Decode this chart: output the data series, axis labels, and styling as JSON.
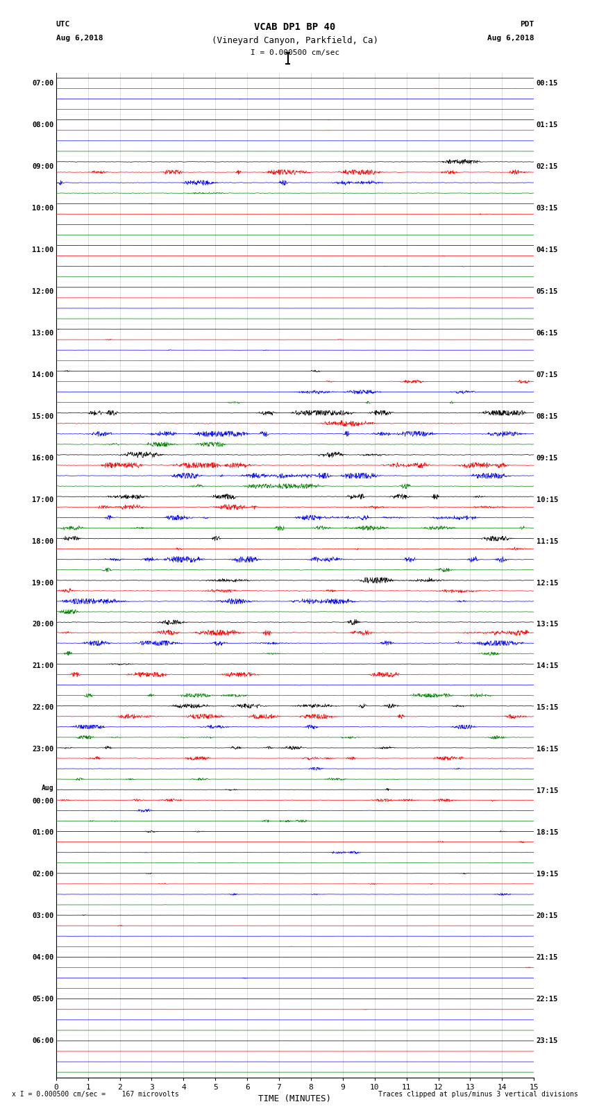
{
  "title_line1": "VCAB DP1 BP 40",
  "title_line2": "(Vineyard Canyon, Parkfield, Ca)",
  "scale_text": "I = 0.000500 cm/sec",
  "footer_left": "x I = 0.000500 cm/sec =    167 microvolts",
  "footer_right": "Traces clipped at plus/minus 3 vertical divisions",
  "utc_label": "UTC",
  "utc_date": "Aug 6,2018",
  "pdt_label": "PDT",
  "pdt_date": "Aug 6,2018",
  "xlabel": "TIME (MINUTES)",
  "time_minutes": 15,
  "colors": [
    "black",
    "red",
    "blue",
    "green"
  ],
  "background": "white",
  "n_rows": 96,
  "left_times": [
    "07:00",
    "",
    "",
    "",
    "08:00",
    "",
    "",
    "",
    "09:00",
    "",
    "",
    "",
    "10:00",
    "",
    "",
    "",
    "11:00",
    "",
    "",
    "",
    "12:00",
    "",
    "",
    "",
    "13:00",
    "",
    "",
    "",
    "14:00",
    "",
    "",
    "",
    "15:00",
    "",
    "",
    "",
    "16:00",
    "",
    "",
    "",
    "17:00",
    "",
    "",
    "",
    "18:00",
    "",
    "",
    "",
    "19:00",
    "",
    "",
    "",
    "20:00",
    "",
    "",
    "",
    "21:00",
    "",
    "",
    "",
    "22:00",
    "",
    "",
    "",
    "23:00",
    "",
    "",
    "",
    "Aug",
    "00:00",
    "",
    "",
    "01:00",
    "",
    "",
    "",
    "02:00",
    "",
    "",
    "",
    "03:00",
    "",
    "",
    "",
    "04:00",
    "",
    "",
    "",
    "05:00",
    "",
    "",
    "",
    "06:00",
    "",
    "",
    ""
  ],
  "right_times": [
    "00:15",
    "",
    "",
    "",
    "01:15",
    "",
    "",
    "",
    "02:15",
    "",
    "",
    "",
    "03:15",
    "",
    "",
    "",
    "04:15",
    "",
    "",
    "",
    "05:15",
    "",
    "",
    "",
    "06:15",
    "",
    "",
    "",
    "07:15",
    "",
    "",
    "",
    "08:15",
    "",
    "",
    "",
    "09:15",
    "",
    "",
    "",
    "10:15",
    "",
    "",
    "",
    "11:15",
    "",
    "",
    "",
    "12:15",
    "",
    "",
    "",
    "13:15",
    "",
    "",
    "",
    "14:15",
    "",
    "",
    "",
    "15:15",
    "",
    "",
    "",
    "16:15",
    "",
    "",
    "",
    "17:15",
    "",
    "",
    "",
    "18:15",
    "",
    "",
    "",
    "19:15",
    "",
    "",
    "",
    "20:15",
    "",
    "",
    "",
    "21:15",
    "",
    "",
    "",
    "22:15",
    "",
    "",
    "",
    "23:15",
    "",
    "",
    ""
  ],
  "amp_by_row": [
    0.06,
    0.06,
    0.06,
    0.04,
    0.06,
    0.06,
    0.06,
    0.06,
    0.5,
    0.5,
    0.5,
    0.5,
    0.06,
    0.1,
    0.06,
    0.04,
    0.06,
    0.08,
    0.1,
    0.04,
    0.06,
    0.06,
    0.1,
    0.04,
    0.08,
    0.1,
    0.12,
    0.06,
    0.2,
    0.35,
    0.4,
    0.25,
    0.5,
    0.6,
    0.55,
    0.45,
    0.6,
    0.55,
    0.55,
    0.5,
    0.55,
    0.55,
    0.5,
    0.45,
    0.5,
    0.55,
    0.6,
    0.4,
    0.6,
    0.6,
    0.55,
    0.45,
    0.55,
    0.55,
    0.5,
    0.45,
    0.5,
    0.5,
    0.45,
    0.4,
    0.45,
    0.45,
    0.4,
    0.35,
    0.35,
    0.35,
    0.3,
    0.25,
    0.25,
    0.3,
    0.35,
    0.25,
    0.2,
    0.2,
    0.25,
    0.15,
    0.15,
    0.15,
    0.2,
    0.1,
    0.1,
    0.1,
    0.12,
    0.08,
    0.08,
    0.1,
    0.1,
    0.06,
    0.06,
    0.06,
    0.06,
    0.04,
    0.04,
    0.04,
    0.04,
    0.04
  ]
}
